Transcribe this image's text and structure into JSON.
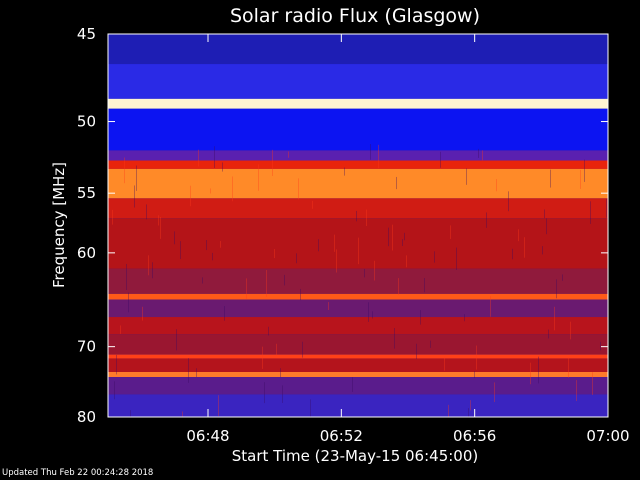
{
  "chart_data": {
    "type": "heatmap",
    "title": "Solar radio Flux (Glasgow)",
    "xlabel": "Start Time (23-May-15 06:45:00)",
    "ylabel": "Frequency [MHz]",
    "y_ticks": [
      "45",
      "50",
      "55",
      "60",
      "70",
      "80"
    ],
    "x_ticks": [
      "06:48",
      "06:52",
      "06:56",
      "07:00"
    ],
    "x_range_minutes": [
      0,
      15
    ],
    "y_range_mhz": [
      45,
      80
    ],
    "y_scale": "reciprocal",
    "bands": [
      {
        "f_start": 45.0,
        "f_end": 46.6,
        "color": "#1e1eb4"
      },
      {
        "f_start": 46.6,
        "f_end": 48.6,
        "color": "#2a2ae6"
      },
      {
        "f_start": 48.6,
        "f_end": 49.2,
        "color": "#fff5d2"
      },
      {
        "f_start": 49.2,
        "f_end": 51.9,
        "color": "#0c14f2"
      },
      {
        "f_start": 51.9,
        "f_end": 52.6,
        "color": "#5a20b0"
      },
      {
        "f_start": 52.6,
        "f_end": 53.2,
        "color": "#e8240c"
      },
      {
        "f_start": 53.2,
        "f_end": 55.4,
        "color": "#ff8a28"
      },
      {
        "f_start": 55.4,
        "f_end": 57.0,
        "color": "#d01c14"
      },
      {
        "f_start": 57.0,
        "f_end": 61.5,
        "color": "#b41418"
      },
      {
        "f_start": 61.5,
        "f_end": 64.0,
        "color": "#901a3c"
      },
      {
        "f_start": 64.0,
        "f_end": 64.6,
        "color": "#ff5a18"
      },
      {
        "f_start": 64.6,
        "f_end": 66.5,
        "color": "#6a1a70"
      },
      {
        "f_start": 66.5,
        "f_end": 68.5,
        "color": "#b8141c"
      },
      {
        "f_start": 68.5,
        "f_end": 71.0,
        "color": "#9a1630"
      },
      {
        "f_start": 71.0,
        "f_end": 71.5,
        "color": "#ff4018"
      },
      {
        "f_start": 71.5,
        "f_end": 73.3,
        "color": "#b4141c"
      },
      {
        "f_start": 73.3,
        "f_end": 74.0,
        "color": "#ff7a2a"
      },
      {
        "f_start": 74.0,
        "f_end": 76.5,
        "color": "#5a1c8c"
      },
      {
        "f_start": 76.5,
        "f_end": 80.0,
        "color": "#3a24c0"
      }
    ],
    "colors": {
      "background": "#000000",
      "axis": "#ffffff",
      "text": "#ffffff"
    }
  },
  "footer": {
    "updated_text": "Updated Thu Feb 22 00:24:28 2018"
  }
}
